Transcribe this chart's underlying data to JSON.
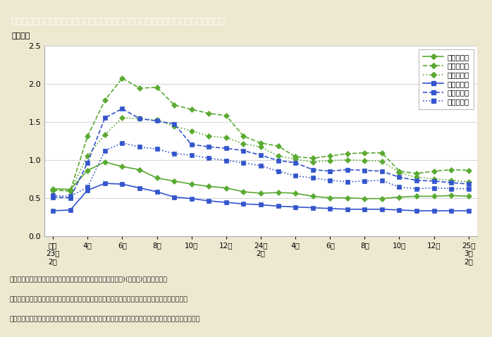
{
  "title": "第１－８－７図　岩手県・宮城県・福島県の雇用保険受給者実人員の推移（男女別）",
  "ylabel": "（万人）",
  "background_outer": "#ede8d0",
  "background_inner": "#ffffff",
  "title_bg": "#8b7355",
  "title_text_color": "#ffffff",
  "ylim": [
    0.0,
    2.5
  ],
  "yticks": [
    0.0,
    0.5,
    1.0,
    1.5,
    2.0,
    2.5
  ],
  "tick_positions": [
    0,
    2,
    4,
    6,
    8,
    10,
    12,
    14,
    16,
    18,
    20,
    22,
    24
  ],
  "tick_labels": [
    "平成\n23年\n2月",
    "4月",
    "6月",
    "8月",
    "10月",
    "12月",
    "24年\n2月",
    "4月",
    "6月",
    "8月",
    "10月",
    "12月",
    "25年\n3月\n2月"
  ],
  "series_order": [
    "iwate_female",
    "miyagi_female",
    "fukushima_female",
    "iwate_male",
    "miyagi_male",
    "fukushima_male"
  ],
  "series": {
    "iwate_female": {
      "label": "岩手県女性",
      "color": "#5aaa32",
      "linestyle": "solid",
      "marker": "D",
      "values": [
        0.62,
        0.61,
        0.86,
        0.97,
        0.91,
        0.87,
        0.76,
        0.72,
        0.68,
        0.65,
        0.63,
        0.58,
        0.56,
        0.57,
        0.56,
        0.52,
        0.5,
        0.5,
        0.49,
        0.49,
        0.51,
        0.52,
        0.52,
        0.53,
        0.52
      ]
    },
    "miyagi_female": {
      "label": "宮城県女性",
      "color": "#5aaa32",
      "linestyle": "dashed",
      "marker": "D",
      "values": [
        0.6,
        0.59,
        1.31,
        1.78,
        2.07,
        1.94,
        1.95,
        1.72,
        1.66,
        1.61,
        1.58,
        1.31,
        1.22,
        1.18,
        1.04,
        1.02,
        1.05,
        1.08,
        1.09,
        1.09,
        0.85,
        0.82,
        0.85,
        0.87,
        0.86
      ]
    },
    "fukushima_female": {
      "label": "福島県女性",
      "color": "#5aaa32",
      "linestyle": "dotted",
      "marker": "D",
      "values": [
        0.6,
        0.59,
        1.05,
        1.33,
        1.55,
        1.54,
        1.52,
        1.44,
        1.38,
        1.31,
        1.29,
        1.21,
        1.17,
        1.05,
        1.01,
        0.97,
        0.99,
        1.0,
        0.99,
        0.98,
        0.83,
        0.77,
        0.75,
        0.73,
        0.71
      ]
    },
    "iwate_male": {
      "label": "岩手県男性",
      "color": "#3355cc",
      "linestyle": "solid",
      "marker": "s",
      "values": [
        0.33,
        0.34,
        0.6,
        0.69,
        0.68,
        0.63,
        0.58,
        0.51,
        0.49,
        0.46,
        0.44,
        0.42,
        0.41,
        0.39,
        0.38,
        0.37,
        0.36,
        0.35,
        0.35,
        0.35,
        0.34,
        0.33,
        0.33,
        0.33,
        0.33
      ]
    },
    "miyagi_male": {
      "label": "宮城県男性",
      "color": "#3355cc",
      "linestyle": "dashed",
      "marker": "s",
      "values": [
        0.51,
        0.5,
        0.96,
        1.55,
        1.67,
        1.54,
        1.51,
        1.47,
        1.2,
        1.17,
        1.15,
        1.12,
        1.06,
        0.99,
        0.96,
        0.87,
        0.85,
        0.87,
        0.86,
        0.85,
        0.77,
        0.73,
        0.72,
        0.7,
        0.68
      ]
    },
    "fukushima_male": {
      "label": "福島県男性",
      "color": "#3355cc",
      "linestyle": "dotted",
      "marker": "s",
      "values": [
        0.53,
        0.52,
        0.64,
        1.12,
        1.22,
        1.17,
        1.14,
        1.08,
        1.06,
        1.02,
        0.99,
        0.96,
        0.92,
        0.85,
        0.79,
        0.76,
        0.73,
        0.71,
        0.72,
        0.73,
        0.64,
        0.62,
        0.63,
        0.62,
        0.62
      ]
    }
  },
  "footnotes": [
    "（備考）　１．厚生労働省「被災３県の現在の雇用状況（月次)(男女別)」より作成。",
    "　　　　　２．雇用保険受給者実人員には、個別延長給付、特別延長給付、広域延長給付を含む。",
    "　　　　　３．雇用保険の数値は自発的失業や定年退職、その他特例（休業、一時離職）対象分も含む。"
  ]
}
